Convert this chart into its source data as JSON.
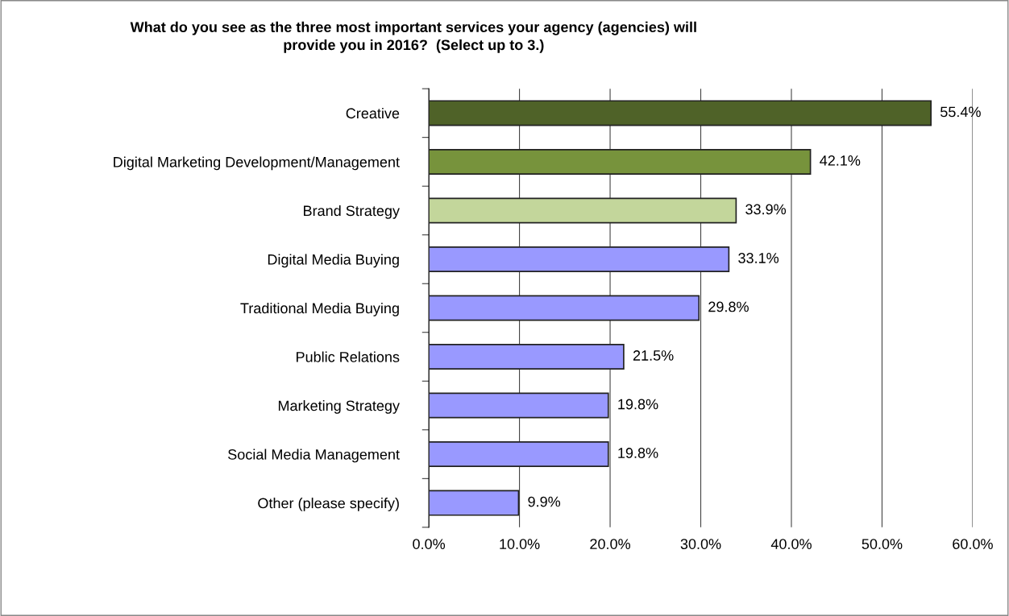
{
  "chart_data": {
    "type": "bar",
    "orientation": "horizontal",
    "title": "What do you see as the three most important services your agency (agencies) will\nprovide you in 2016?  (Select up to 3.)",
    "categories": [
      "Creative",
      "Digital Marketing Development/Management",
      "Brand Strategy",
      "Digital Media Buying",
      "Traditional Media Buying",
      "Public Relations",
      "Marketing Strategy",
      "Social Media Management",
      "Other (please specify)"
    ],
    "values": [
      55.4,
      42.1,
      33.9,
      33.1,
      29.8,
      21.5,
      19.8,
      19.8,
      9.9
    ],
    "value_labels": [
      "55.4%",
      "42.1%",
      "33.9%",
      "33.1%",
      "29.8%",
      "21.5%",
      "19.8%",
      "19.8%",
      "9.9%"
    ],
    "colors": [
      "#4f6228",
      "#77933c",
      "#c3d69b",
      "#9999ff",
      "#9999ff",
      "#9999ff",
      "#9999ff",
      "#9999ff",
      "#9999ff"
    ],
    "xlim": [
      0,
      60
    ],
    "xticks": [
      {
        "value": 0,
        "label": "0.0%"
      },
      {
        "value": 10,
        "label": "10.0%"
      },
      {
        "value": 20,
        "label": "20.0%"
      },
      {
        "value": 30,
        "label": "30.0%"
      },
      {
        "value": 40,
        "label": "40.0%"
      },
      {
        "value": 50,
        "label": "50.0%"
      },
      {
        "value": 60,
        "label": "60.0%"
      }
    ],
    "grid": "x",
    "legend": false
  }
}
